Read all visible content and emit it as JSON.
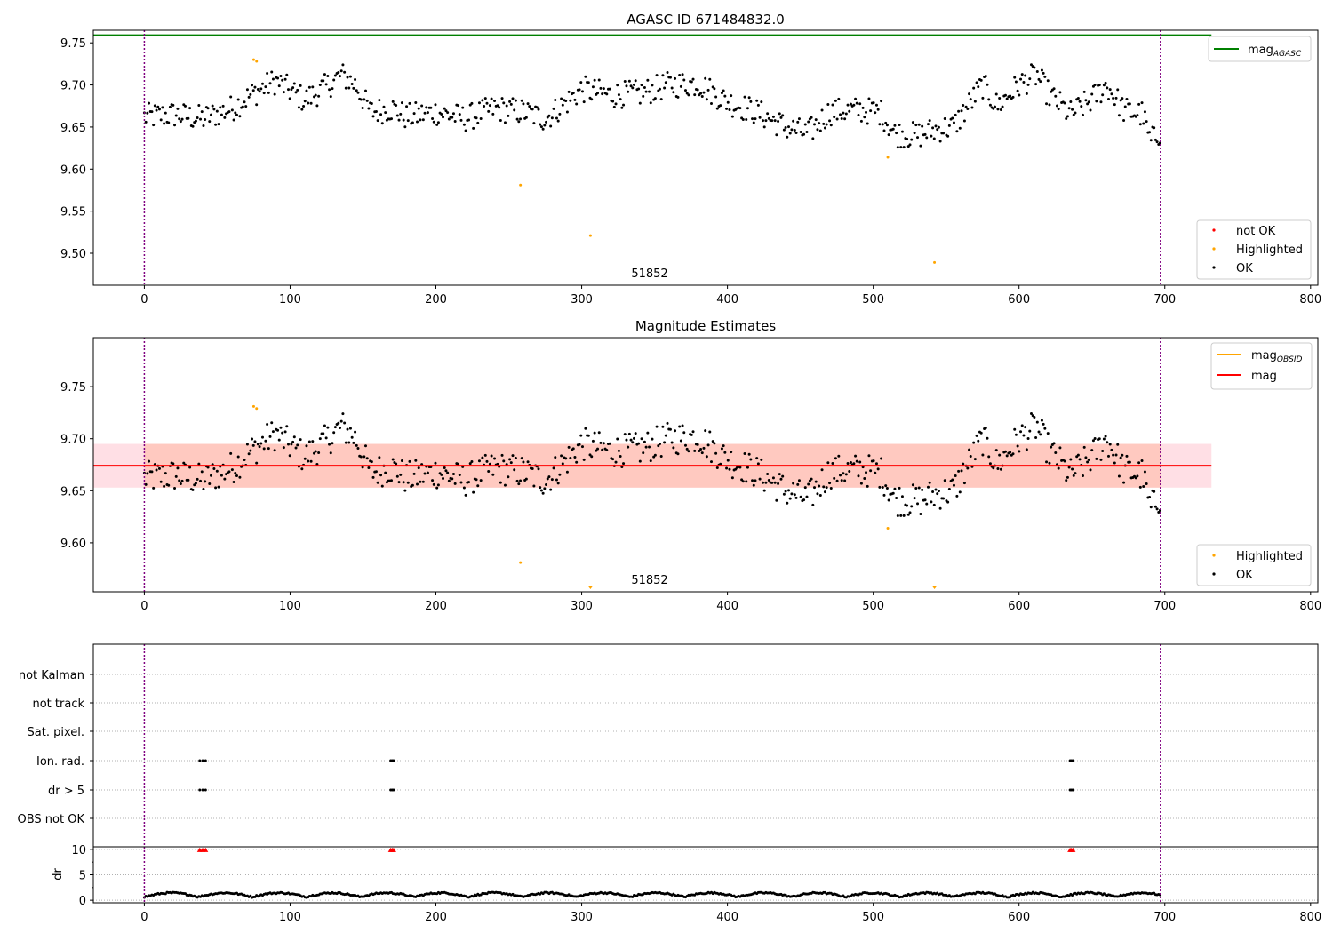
{
  "figure": {
    "title": "AGASC ID 671484832.0"
  },
  "colors": {
    "ok": "#000000",
    "highlighted": "#ffa500",
    "not_ok": "#ff0000",
    "mag_agasc": "#008000",
    "mag_obsid": "#ffa500",
    "mag": "#ff0000",
    "obsid_boundary": "#800080",
    "band_outer": "#ffc0cb",
    "band_inner": "#ffa07a",
    "grid": "#b0b0b0"
  },
  "chart_data": [
    {
      "id": "agasc",
      "type": "scatter",
      "title": "AGASC ID 671484832.0",
      "xlim": [
        -35,
        805
      ],
      "ylim": [
        9.462,
        9.765
      ],
      "xticks": [
        0,
        100,
        200,
        300,
        400,
        500,
        600,
        700,
        800
      ],
      "yticks": [
        9.5,
        9.55,
        9.6,
        9.65,
        9.7,
        9.75
      ],
      "ytick_labels": [
        "9.50",
        "9.55",
        "9.60",
        "9.65",
        "9.70",
        "9.75"
      ],
      "obsid_label": "51852",
      "obsid_boundaries": [
        0,
        697
      ],
      "mag_agasc": 9.759,
      "mag_agasc_x_end": 732,
      "legend_lines": [
        {
          "label": "mag",
          "sub": "AGASC",
          "color": "#008000"
        }
      ],
      "legend_markers": [
        {
          "label": "not OK",
          "color": "#ff0000"
        },
        {
          "label": "Highlighted",
          "color": "#ffa500"
        },
        {
          "label": "OK",
          "color": "#000000"
        }
      ],
      "highlighted": [
        [
          75,
          9.73
        ],
        [
          77,
          9.728
        ],
        [
          258,
          9.581
        ],
        [
          306,
          9.521
        ],
        [
          510,
          9.614
        ],
        [
          542,
          9.489
        ]
      ]
    },
    {
      "id": "estimates",
      "type": "scatter",
      "title": "Magnitude Estimates",
      "xlim": [
        -35,
        805
      ],
      "ylim": [
        9.553,
        9.797
      ],
      "xticks": [
        0,
        100,
        200,
        300,
        400,
        500,
        600,
        700,
        800
      ],
      "yticks": [
        9.6,
        9.65,
        9.7,
        9.75
      ],
      "ytick_labels": [
        "9.60",
        "9.65",
        "9.70",
        "9.75"
      ],
      "obsid_label": "51852",
      "obsid_boundaries": [
        0,
        697
      ],
      "mag": 9.674,
      "mag_obsid": 9.674,
      "band": [
        9.653,
        9.695
      ],
      "band_x_end": 732,
      "legend_lines": [
        {
          "label": "mag",
          "sub": "OBSID",
          "color": "#ffa500"
        },
        {
          "label": "mag",
          "sub": "",
          "color": "#ff0000"
        }
      ],
      "legend_markers": [
        {
          "label": "Highlighted",
          "color": "#ffa500"
        },
        {
          "label": "OK",
          "color": "#000000"
        }
      ],
      "highlighted": [
        [
          75,
          9.731
        ],
        [
          77,
          9.729
        ],
        [
          258,
          9.581
        ],
        [
          510,
          9.614
        ]
      ],
      "clipped_low": [
        306,
        542
      ]
    },
    {
      "id": "flags",
      "type": "scatter",
      "xlim": [
        -35,
        805
      ],
      "categories": [
        "not Kalman",
        "not track",
        "Sat. pixel.",
        "Ion. rad.",
        "dr > 5",
        "OBS not OK"
      ],
      "flagged": {
        "Ion. rad.": [
          38,
          40,
          42,
          169,
          170,
          171,
          635,
          636,
          637
        ],
        "dr > 5": [
          38,
          40,
          42,
          169,
          170,
          171,
          635,
          636,
          637
        ]
      },
      "obsid_boundaries": [
        0,
        697
      ]
    },
    {
      "id": "dr",
      "type": "scatter",
      "ylabel": "dr",
      "xlim": [
        -35,
        805
      ],
      "ylim": [
        -0.5,
        10.5
      ],
      "xticks": [
        0,
        100,
        200,
        300,
        400,
        500,
        600,
        700,
        800
      ],
      "yticks": [
        0,
        5,
        10
      ],
      "ytick_labels": [
        "0",
        "5",
        "10"
      ],
      "clipped_high": [
        38,
        40,
        42,
        169,
        170,
        171,
        635,
        636,
        637
      ],
      "obsid_boundaries": [
        0,
        697
      ]
    }
  ]
}
